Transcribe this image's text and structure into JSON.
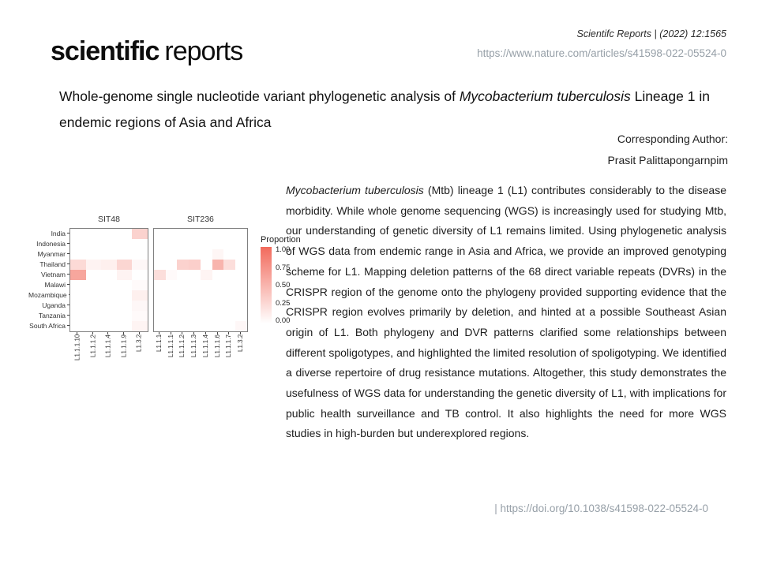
{
  "header": {
    "logo_bold": "scientific",
    "logo_regular": "reports",
    "journal_line": "Scientifc Reports | (2022) 12:1565",
    "article_url": "https://www.nature.com/articles/s41598-022-05524-0"
  },
  "title": {
    "part1": "Whole-genome single nucleotide variant phylogenetic analysis of ",
    "italic": "Mycobacterium tuberculosis",
    "part2": " Lineage 1 in endemic regions of Asia and Africa"
  },
  "corresponding": {
    "label": "Corresponding Author:",
    "name": "Prasit Palittapongarnpim"
  },
  "abstract": {
    "italic_lead": "Mycobacterium tuberculosis",
    "rest": " (Mtb) lineage 1 (L1) contributes considerably to the disease morbidity. While whole genome sequencing (WGS) is increasingly used for studying Mtb, our understanding of genetic diversity of L1 remains limited. Using phylogenetic analysis of WGS data from endemic range in Asia and Africa, we provide an improved genotyping scheme for L1. Mapping deletion patterns of the 68 direct variable repeats (DVRs) in the CRISPR region of the genome onto the phylogeny provided supporting evidence that the CRISPR region evolves primarily by deletion, and hinted at a possible Southeast Asian origin of L1. Both phylogeny and DVR patterns clarified some relationships between different spoligotypes, and highlighted the limited resolution of spoligotyping. We identified a diverse repertoire of drug resistance mutations. Altogether, this study demonstrates the usefulness of WGS data for understanding the genetic diversity of L1, with implications for public health surveillance and TB control. It also highlights the need for more WGS studies in high-burden but underexplored regions."
  },
  "footer": {
    "doi": "| https://doi.org/10.1038/s41598-022-05524-0"
  },
  "chart_data": {
    "type": "heatmap",
    "legend_title": "Proportion",
    "legend_ticks": [
      "1.00",
      "0.75",
      "0.50",
      "0.25",
      "0.00"
    ],
    "heat_color": "#f26a5c",
    "heat_rgb": [
      242,
      106,
      92
    ],
    "value_range": [
      0,
      1
    ],
    "rows": [
      "India",
      "Indonesia",
      "Myanmar",
      "Thailand",
      "Vietnam",
      "Malawi",
      "Mozambique",
      "Uganda",
      "Tanzania",
      "South Africa"
    ],
    "panels": [
      {
        "title": "SIT48",
        "columns": [
          "L1.1.1.10",
          "L1.1.1.2",
          "L1.1.1.4",
          "L1.1.1.9",
          "L1.3.2"
        ],
        "values": [
          [
            0,
            0,
            0,
            0,
            0.3
          ],
          [
            0,
            0,
            0,
            0,
            0
          ],
          [
            0,
            0,
            0,
            0,
            0
          ],
          [
            0.25,
            0.08,
            0.1,
            0.28,
            0.05
          ],
          [
            0.6,
            0,
            0,
            0.08,
            0
          ],
          [
            0,
            0,
            0,
            0,
            0.03
          ],
          [
            0,
            0,
            0,
            0,
            0.1
          ],
          [
            0,
            0,
            0,
            0,
            0.05
          ],
          [
            0,
            0,
            0,
            0,
            0.03
          ],
          [
            0,
            0,
            0,
            0,
            0.07
          ]
        ]
      },
      {
        "title": "SIT236",
        "columns": [
          "L1.1.1",
          "L1.1.1.1",
          "L1.1.1.2",
          "L1.1.1.3",
          "L1.1.1.4",
          "L1.1.1.6",
          "L1.1.1.7",
          "L1.3.2"
        ],
        "values": [
          [
            0,
            0,
            0,
            0,
            0,
            0,
            0,
            0
          ],
          [
            0,
            0,
            0,
            0,
            0,
            0,
            0,
            0
          ],
          [
            0,
            0,
            0,
            0,
            0,
            0.06,
            0,
            0
          ],
          [
            0,
            0,
            0.3,
            0.32,
            0,
            0.5,
            0.22,
            0
          ],
          [
            0.22,
            0.03,
            0,
            0,
            0.07,
            0,
            0,
            0
          ],
          [
            0,
            0,
            0,
            0,
            0,
            0,
            0,
            0
          ],
          [
            0,
            0,
            0,
            0,
            0,
            0,
            0,
            0
          ],
          [
            0,
            0,
            0,
            0,
            0,
            0,
            0,
            0
          ],
          [
            0,
            0,
            0,
            0,
            0,
            0,
            0,
            0
          ],
          [
            0,
            0,
            0,
            0,
            0,
            0,
            0,
            0.05
          ]
        ]
      }
    ]
  }
}
